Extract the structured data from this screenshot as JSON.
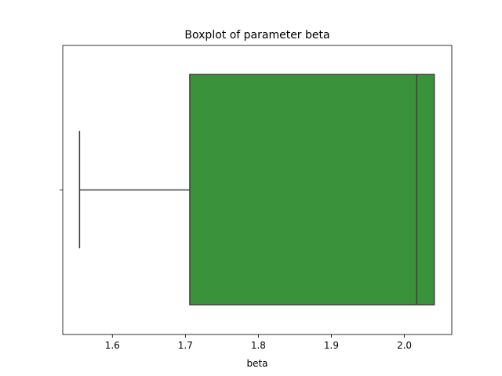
{
  "chart_data": {
    "type": "boxplot",
    "title": "Boxplot of parameter beta",
    "xlabel": "beta",
    "ylabel": "",
    "xlim": [
      1.532,
      2.065
    ],
    "xticks": [
      1.6,
      1.7,
      1.8,
      1.9,
      2.0
    ],
    "xtick_labels": [
      "1.6",
      "1.7",
      "1.8",
      "1.9",
      "2.0"
    ],
    "box": {
      "whisker_low": 1.555,
      "q1": 1.706,
      "median": 2.017,
      "q3": 2.041,
      "whisker_high": 2.041
    },
    "colors": {
      "box_fill": "#3a923a",
      "line": "#3f3f3f",
      "axes": "#000000"
    },
    "grid": false
  }
}
